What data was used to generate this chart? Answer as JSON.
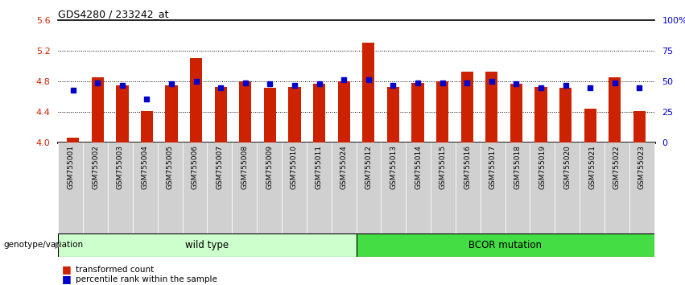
{
  "title": "GDS4280 / 233242_at",
  "samples": [
    "GSM755001",
    "GSM755002",
    "GSM755003",
    "GSM755004",
    "GSM755005",
    "GSM755006",
    "GSM755007",
    "GSM755008",
    "GSM755009",
    "GSM755010",
    "GSM755011",
    "GSM755024",
    "GSM755012",
    "GSM755013",
    "GSM755014",
    "GSM755015",
    "GSM755016",
    "GSM755017",
    "GSM755018",
    "GSM755019",
    "GSM755020",
    "GSM755021",
    "GSM755022",
    "GSM755023"
  ],
  "red_values": [
    4.06,
    4.85,
    4.75,
    4.41,
    4.75,
    5.1,
    4.73,
    4.8,
    4.72,
    4.73,
    4.77,
    4.8,
    5.3,
    4.73,
    4.78,
    4.8,
    4.92,
    4.92,
    4.77,
    4.73,
    4.72,
    4.44,
    4.85,
    4.41
  ],
  "blue_values": [
    4.68,
    4.78,
    4.75,
    4.57,
    4.77,
    4.8,
    4.72,
    4.78,
    4.77,
    4.75,
    4.77,
    4.82,
    4.82,
    4.75,
    4.78,
    4.78,
    4.78,
    4.8,
    4.77,
    4.72,
    4.75,
    4.72,
    4.78,
    4.72
  ],
  "groups": [
    {
      "label": "wild type",
      "start": 0,
      "end": 12,
      "color": "#ccffcc"
    },
    {
      "label": "BCOR mutation",
      "start": 12,
      "end": 24,
      "color": "#44dd44"
    }
  ],
  "ylim_left": [
    4.0,
    5.6
  ],
  "ylim_right": [
    0,
    100
  ],
  "yticks_left": [
    4.0,
    4.4,
    4.8,
    5.2,
    5.6
  ],
  "yticks_right": [
    0,
    25,
    50,
    75,
    100
  ],
  "ytick_labels_right": [
    "0",
    "25",
    "50",
    "75",
    "100%"
  ],
  "grid_lines": [
    4.4,
    4.8,
    5.2
  ],
  "bar_color": "#cc2200",
  "dot_color": "#0000cc",
  "bar_width": 0.5,
  "base": 4.0,
  "legend_items": [
    {
      "label": "transformed count",
      "color": "#cc2200"
    },
    {
      "label": "percentile rank within the sample",
      "color": "#0000cc"
    }
  ],
  "xlabel_group": "genotype/variation",
  "left_axis_color": "#cc2200",
  "right_axis_color": "#0000cc",
  "bg_color": "#ffffff",
  "tick_label_bg": "#d0d0d0"
}
